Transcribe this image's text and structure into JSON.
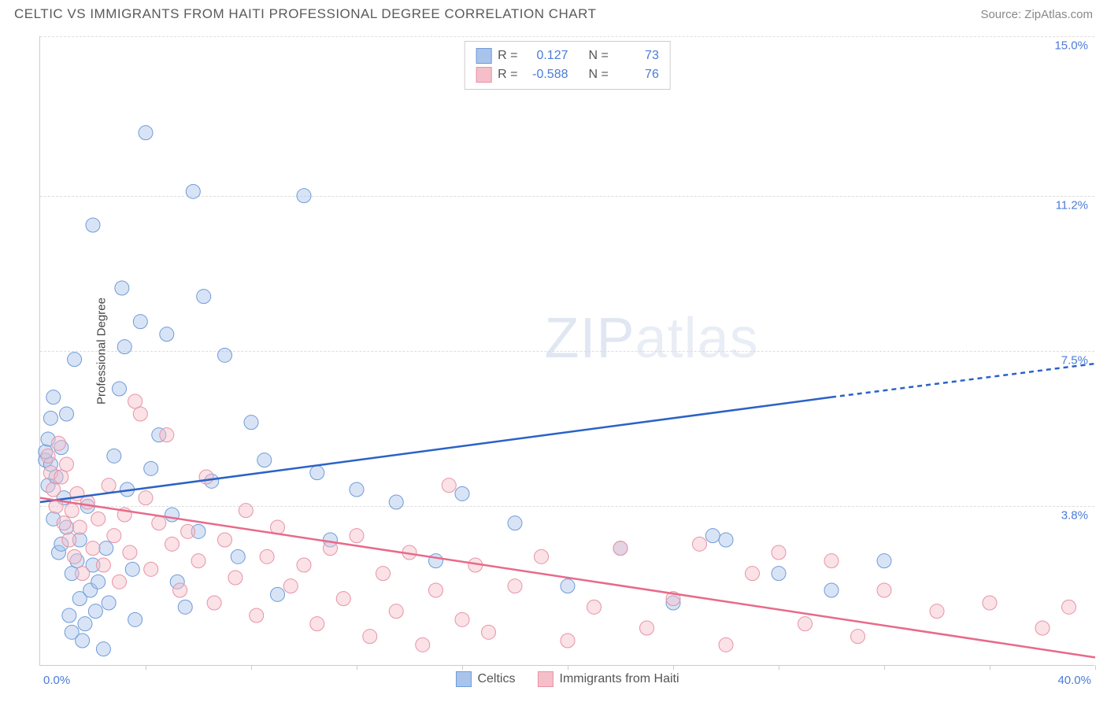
{
  "title": "CELTIC VS IMMIGRANTS FROM HAITI PROFESSIONAL DEGREE CORRELATION CHART",
  "source": "Source: ZipAtlas.com",
  "ylabel": "Professional Degree",
  "watermark_bold": "ZIP",
  "watermark_light": "atlas",
  "chart": {
    "type": "scatter",
    "xlim": [
      0,
      40
    ],
    "ylim": [
      0,
      15
    ],
    "x_min_label": "0.0%",
    "x_max_label": "40.0%",
    "ygrid": [
      3.8,
      7.5,
      11.2,
      15.0
    ],
    "ygrid_labels": [
      "3.8%",
      "7.5%",
      "11.2%",
      "15.0%"
    ],
    "xticks": [
      4,
      8,
      12,
      16,
      20,
      24,
      28,
      32,
      36,
      40
    ],
    "background_color": "#ffffff",
    "grid_color": "#dddddd",
    "axis_color": "#cccccc",
    "tick_label_color": "#4a7bd8",
    "marker_radius": 9,
    "marker_opacity": 0.45,
    "line_width": 2.5,
    "series": [
      {
        "name": "Celtics",
        "color_fill": "#a9c4ea",
        "color_stroke": "#6f9bd8",
        "line_color": "#2b62c6",
        "R": "0.127",
        "N": "73",
        "regression": {
          "x1": 0,
          "y1": 3.9,
          "x2_solid": 30,
          "y2_solid": 6.4,
          "x2": 40,
          "y2": 7.2
        },
        "points": [
          [
            0.2,
            4.9
          ],
          [
            0.2,
            5.1
          ],
          [
            0.3,
            5.4
          ],
          [
            0.3,
            4.3
          ],
          [
            0.4,
            4.8
          ],
          [
            0.4,
            5.9
          ],
          [
            0.5,
            6.4
          ],
          [
            0.5,
            3.5
          ],
          [
            0.6,
            4.5
          ],
          [
            0.7,
            2.7
          ],
          [
            0.8,
            2.9
          ],
          [
            0.8,
            5.2
          ],
          [
            0.9,
            4.0
          ],
          [
            1.0,
            3.3
          ],
          [
            1.0,
            6.0
          ],
          [
            1.1,
            1.2
          ],
          [
            1.2,
            0.8
          ],
          [
            1.2,
            2.2
          ],
          [
            1.3,
            7.3
          ],
          [
            1.4,
            2.5
          ],
          [
            1.5,
            1.6
          ],
          [
            1.5,
            3.0
          ],
          [
            1.6,
            0.6
          ],
          [
            1.7,
            1.0
          ],
          [
            1.8,
            3.8
          ],
          [
            1.9,
            1.8
          ],
          [
            2.0,
            2.4
          ],
          [
            2.0,
            10.5
          ],
          [
            2.1,
            1.3
          ],
          [
            2.2,
            2.0
          ],
          [
            2.4,
            0.4
          ],
          [
            2.5,
            2.8
          ],
          [
            2.6,
            1.5
          ],
          [
            2.8,
            5.0
          ],
          [
            3.0,
            6.6
          ],
          [
            3.1,
            9.0
          ],
          [
            3.2,
            7.6
          ],
          [
            3.3,
            4.2
          ],
          [
            3.5,
            2.3
          ],
          [
            3.6,
            1.1
          ],
          [
            3.8,
            8.2
          ],
          [
            4.0,
            12.7
          ],
          [
            4.2,
            4.7
          ],
          [
            4.5,
            5.5
          ],
          [
            4.8,
            7.9
          ],
          [
            5.0,
            3.6
          ],
          [
            5.2,
            2.0
          ],
          [
            5.5,
            1.4
          ],
          [
            5.8,
            11.3
          ],
          [
            6.0,
            3.2
          ],
          [
            6.2,
            8.8
          ],
          [
            6.5,
            4.4
          ],
          [
            7.0,
            7.4
          ],
          [
            7.5,
            2.6
          ],
          [
            8.0,
            5.8
          ],
          [
            8.5,
            4.9
          ],
          [
            9.0,
            1.7
          ],
          [
            10.0,
            11.2
          ],
          [
            10.5,
            4.6
          ],
          [
            11.0,
            3.0
          ],
          [
            12.0,
            4.2
          ],
          [
            13.5,
            3.9
          ],
          [
            15.0,
            2.5
          ],
          [
            16.0,
            4.1
          ],
          [
            18.0,
            3.4
          ],
          [
            20.0,
            1.9
          ],
          [
            22.0,
            2.8
          ],
          [
            24.0,
            1.5
          ],
          [
            26.0,
            3.0
          ],
          [
            28.0,
            2.2
          ],
          [
            30.0,
            1.8
          ],
          [
            32.0,
            2.5
          ],
          [
            25.5,
            3.1
          ]
        ]
      },
      {
        "name": "Immigrants from Haiti",
        "color_fill": "#f5bfc9",
        "color_stroke": "#e893a4",
        "line_color": "#e86a8a",
        "R": "-0.588",
        "N": "76",
        "regression": {
          "x1": 0,
          "y1": 4.0,
          "x2_solid": 40,
          "y2_solid": 0.2,
          "x2": 40,
          "y2": 0.2
        },
        "points": [
          [
            0.3,
            5.0
          ],
          [
            0.4,
            4.6
          ],
          [
            0.5,
            4.2
          ],
          [
            0.6,
            3.8
          ],
          [
            0.7,
            5.3
          ],
          [
            0.8,
            4.5
          ],
          [
            0.9,
            3.4
          ],
          [
            1.0,
            4.8
          ],
          [
            1.1,
            3.0
          ],
          [
            1.2,
            3.7
          ],
          [
            1.3,
            2.6
          ],
          [
            1.4,
            4.1
          ],
          [
            1.5,
            3.3
          ],
          [
            1.6,
            2.2
          ],
          [
            1.8,
            3.9
          ],
          [
            2.0,
            2.8
          ],
          [
            2.2,
            3.5
          ],
          [
            2.4,
            2.4
          ],
          [
            2.6,
            4.3
          ],
          [
            2.8,
            3.1
          ],
          [
            3.0,
            2.0
          ],
          [
            3.2,
            3.6
          ],
          [
            3.4,
            2.7
          ],
          [
            3.6,
            6.3
          ],
          [
            3.8,
            6.0
          ],
          [
            4.0,
            4.0
          ],
          [
            4.2,
            2.3
          ],
          [
            4.5,
            3.4
          ],
          [
            4.8,
            5.5
          ],
          [
            5.0,
            2.9
          ],
          [
            5.3,
            1.8
          ],
          [
            5.6,
            3.2
          ],
          [
            6.0,
            2.5
          ],
          [
            6.3,
            4.5
          ],
          [
            6.6,
            1.5
          ],
          [
            7.0,
            3.0
          ],
          [
            7.4,
            2.1
          ],
          [
            7.8,
            3.7
          ],
          [
            8.2,
            1.2
          ],
          [
            8.6,
            2.6
          ],
          [
            9.0,
            3.3
          ],
          [
            9.5,
            1.9
          ],
          [
            10.0,
            2.4
          ],
          [
            10.5,
            1.0
          ],
          [
            11.0,
            2.8
          ],
          [
            11.5,
            1.6
          ],
          [
            12.0,
            3.1
          ],
          [
            12.5,
            0.7
          ],
          [
            13.0,
            2.2
          ],
          [
            13.5,
            1.3
          ],
          [
            14.0,
            2.7
          ],
          [
            14.5,
            0.5
          ],
          [
            15.0,
            1.8
          ],
          [
            15.5,
            4.3
          ],
          [
            16.0,
            1.1
          ],
          [
            16.5,
            2.4
          ],
          [
            17.0,
            0.8
          ],
          [
            18.0,
            1.9
          ],
          [
            19.0,
            2.6
          ],
          [
            20.0,
            0.6
          ],
          [
            21.0,
            1.4
          ],
          [
            22.0,
            2.8
          ],
          [
            23.0,
            0.9
          ],
          [
            24.0,
            1.6
          ],
          [
            25.0,
            2.9
          ],
          [
            26.0,
            0.5
          ],
          [
            27.0,
            2.2
          ],
          [
            28.0,
            2.7
          ],
          [
            29.0,
            1.0
          ],
          [
            30.0,
            2.5
          ],
          [
            31.0,
            0.7
          ],
          [
            32.0,
            1.8
          ],
          [
            34.0,
            1.3
          ],
          [
            36.0,
            1.5
          ],
          [
            38.0,
            0.9
          ],
          [
            39.0,
            1.4
          ]
        ]
      }
    ]
  },
  "legend": {
    "r_label": "R =",
    "n_label": "N ="
  }
}
